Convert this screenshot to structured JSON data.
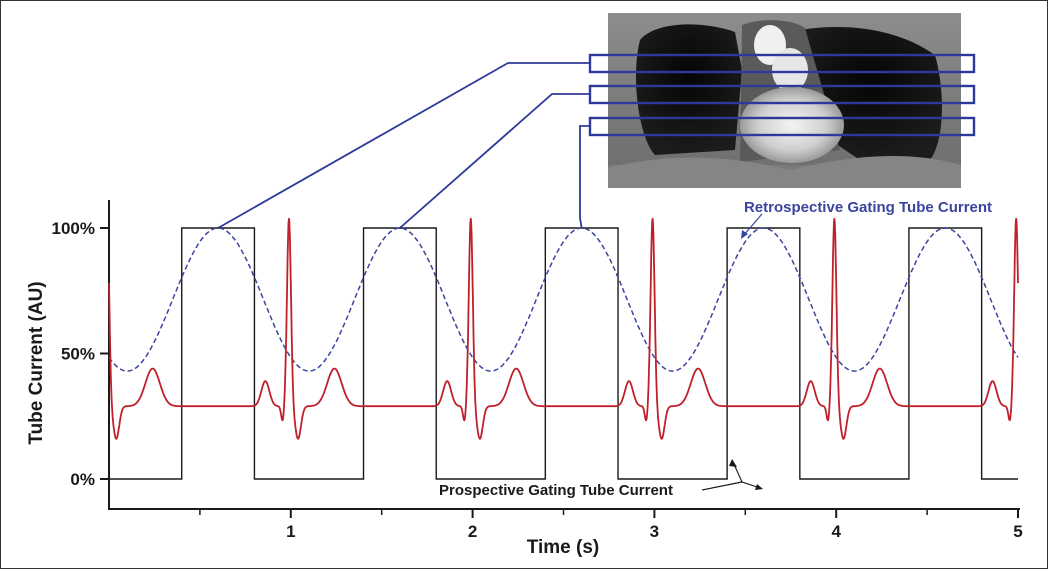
{
  "chart_data": {
    "type": "line",
    "title": "",
    "xlabel": "Time (s)",
    "ylabel": "Tube Current (AU)",
    "xlim": [
      0,
      5
    ],
    "ylim": [
      0,
      100
    ],
    "x_ticks": [
      1,
      2,
      3,
      4,
      5
    ],
    "x_minor_ticks": [
      0.5,
      1.5,
      2.5,
      3.5,
      4.5
    ],
    "y_ticks": [
      {
        "value": 0,
        "label": "0%"
      },
      {
        "value": 50,
        "label": "50%"
      },
      {
        "value": 100,
        "label": "100%"
      }
    ],
    "grid": false,
    "series": [
      {
        "name": "Prospective Gating Tube Current",
        "style": "solid",
        "color": "#1a1a1a",
        "kind": "square-pulse",
        "low": 0,
        "high": 100,
        "on_intervals": [
          [
            0.4,
            0.8
          ],
          [
            1.4,
            1.8
          ],
          [
            2.4,
            2.8
          ],
          [
            3.4,
            3.8
          ],
          [
            4.4,
            4.8
          ]
        ]
      },
      {
        "name": "Retrospective Gating Tube Current",
        "style": "dashed",
        "color": "#3a45a0",
        "kind": "sinusoid",
        "period": 1.0,
        "peak_times": [
          0.6,
          1.6,
          2.6,
          3.6,
          4.6
        ],
        "max": 100,
        "min": 43
      },
      {
        "name": "",
        "style": "solid",
        "color": "#c0202a",
        "kind": "ecg",
        "period": 1.0,
        "r_peak_times": [
          0.99,
          1.99,
          2.99,
          3.99
        ],
        "baseline": 29,
        "r_peak": 100,
        "s_trough": 18,
        "t_wave_peak": 44,
        "p_wave_peak": 39
      }
    ],
    "annotations": [
      {
        "text": "Retrospective Gating Tube Current",
        "color": "#3a45a0"
      },
      {
        "text": "Prospective Gating Tube Current",
        "color": "#1a1a1a"
      }
    ],
    "inset": {
      "content": "coronal CT image of the heart with three axial slab boxes",
      "linked_pulses_at": [
        0.6,
        1.6,
        2.6
      ]
    }
  },
  "colors": {
    "ecg": "#c0202a",
    "retro": "#3a45a0",
    "prosp": "#1a1a1a",
    "link": "#2e3a9a"
  }
}
